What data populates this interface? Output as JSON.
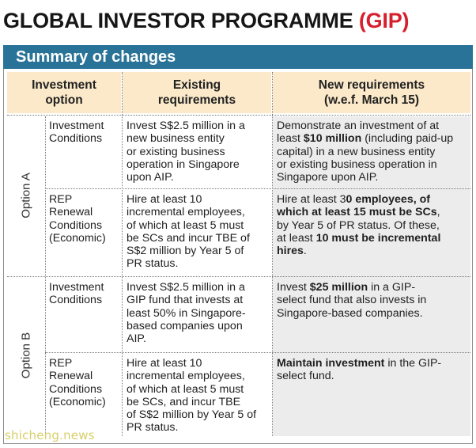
{
  "title": {
    "main": "GLOBAL INVESTOR PROGRAMME ",
    "accent": "(GIP)"
  },
  "section_heading": "Summary of changes",
  "table": {
    "headers": {
      "investment_option_1": "Investment",
      "investment_option_2": "option",
      "existing_1": "Existing",
      "existing_2": "requirements",
      "new_1": "New requirements",
      "new_2": "(w.e.f. March 15)"
    },
    "option_a": {
      "label": "Option A",
      "investment_conditions": {
        "label_1": "Investment",
        "label_2": "Conditions",
        "existing": [
          "Invest S$2.5 million in a",
          "new business entity",
          "or existing business",
          "operation in Singapore",
          "upon AIP."
        ],
        "new_line1": "Demonstrate an investment of at",
        "new_line2_pre": "least ",
        "new_line2_bold": "$10 million",
        "new_line2_post": " (including paid-up",
        "new_rest": [
          "capital) in a new business entity",
          "or existing business operation in",
          "Singapore upon AIP."
        ]
      },
      "rep_renewal": {
        "label": [
          "REP",
          "Renewal",
          "Conditions",
          "(Economic)"
        ],
        "existing": [
          "Hire at least 10",
          "incremental employees,",
          "of which at least 5 must",
          "be SCs and incur TBE of",
          "S$2 million by Year 5 of",
          "PR status."
        ],
        "new_line1_pre": "Hire at least 3",
        "new_line1_bold": "0 employees, of",
        "new_line2_bold": "which at least 15 must be SCs",
        "new_line2_post": ",",
        "new_line3": "by Year 5 of PR status. Of these,",
        "new_line4_pre": "at least ",
        "new_line4_bold": "10 must be incremental",
        "new_line5_bold": "hires",
        "new_line5_post": "."
      }
    },
    "option_b": {
      "label": "Option B",
      "investment_conditions": {
        "label_1": "Investment",
        "label_2": "Conditions",
        "existing": [
          "Invest S$2.5 million in a",
          "GIP fund that invests at",
          "least 50% in Singapore-",
          "based companies upon",
          "AIP."
        ],
        "new_line1_pre": "Invest ",
        "new_line1_bold": "$25 million",
        "new_line1_post": " in a GIP-",
        "new_rest": [
          "select fund that also invests in",
          "Singapore-based companies."
        ]
      },
      "rep_renewal": {
        "label": [
          "REP",
          "Renewal",
          "Conditions",
          "(Economic)"
        ],
        "existing": [
          "Hire at least 10",
          "incremental employees,",
          "of which at least 5 must",
          "be SCs, and incur TBE",
          "of S$2 million by Year 5 of",
          "PR status."
        ],
        "new_line1_bold": "Maintain investment",
        "new_line1_post": " in the GIP-",
        "new_line2": "select fund."
      }
    }
  },
  "watermark": "shicheng.news",
  "colors": {
    "title_accent": "#d6202e",
    "banner": "#2a7398",
    "header_bg": "#fbe9c9",
    "shade_bg": "#ececec"
  }
}
